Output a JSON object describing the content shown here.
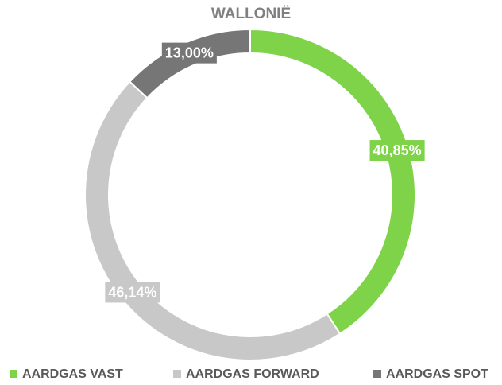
{
  "chart_data": {
    "type": "donut",
    "title": "WALLONIË",
    "categories": [
      "AARDGAS VAST",
      "AARDGAS FORWARD",
      "AARDGAS SPOT"
    ],
    "values": [
      40.85,
      46.14,
      13.0
    ],
    "value_labels": [
      "40,85%",
      "46,14%",
      "13,00%"
    ],
    "colors": [
      "#7ed348",
      "#c8c8c8",
      "#767676"
    ],
    "legend": "bottom"
  }
}
